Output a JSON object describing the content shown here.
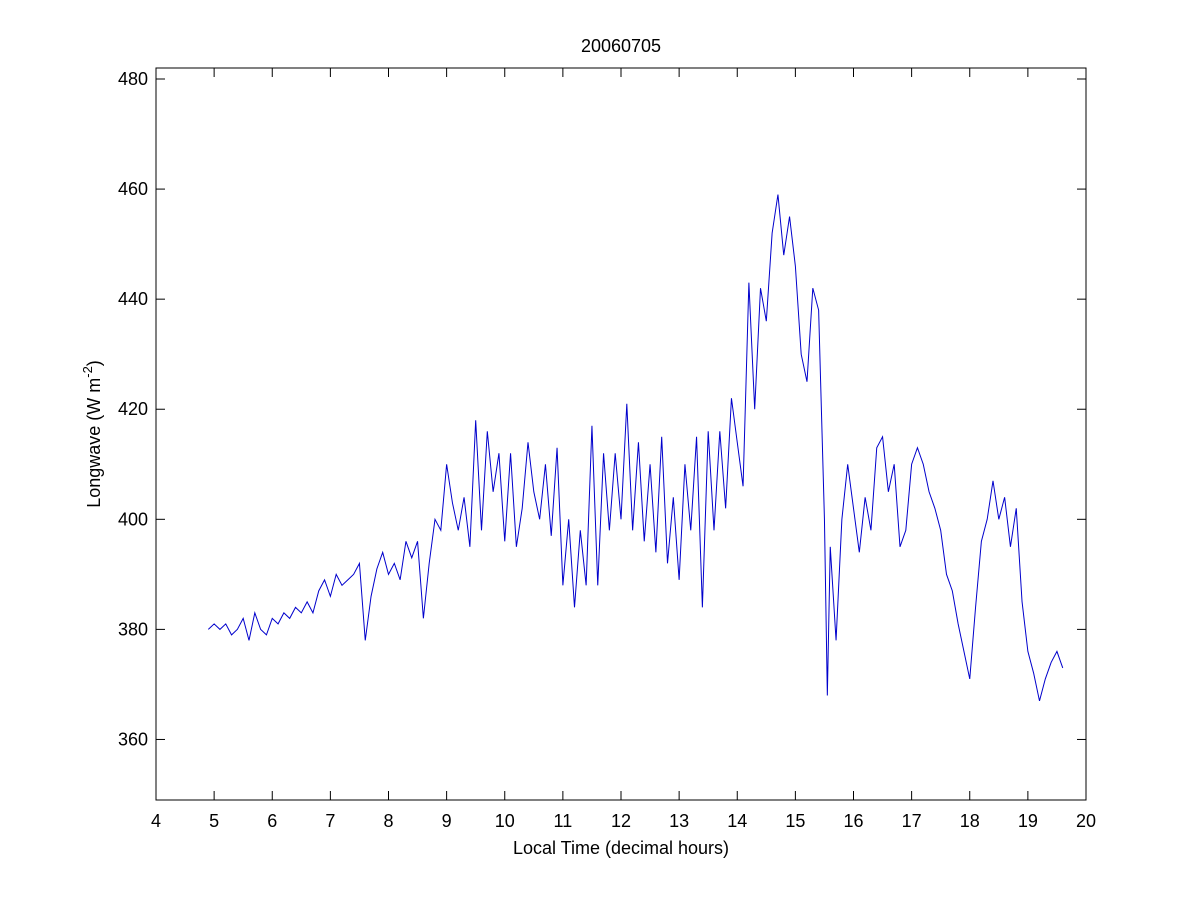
{
  "chart_data": {
    "type": "line",
    "title": "20060705",
    "x_label": "Local Time (decimal hours)",
    "y_label": {
      "text": "Longwave (W m",
      "superscript": "-2",
      "suffix": ")"
    },
    "xlim": [
      4,
      20
    ],
    "xticks": [
      4,
      5,
      6,
      7,
      8,
      9,
      10,
      11,
      12,
      13,
      14,
      15,
      16,
      17,
      18,
      19,
      20
    ],
    "ylim": [
      349,
      482
    ],
    "yticks": [
      360,
      380,
      400,
      420,
      440,
      460,
      480
    ],
    "series": [
      {
        "color": "#0000cc",
        "x": [
          4.9,
          5.0,
          5.1,
          5.2,
          5.3,
          5.4,
          5.5,
          5.6,
          5.7,
          5.8,
          5.9,
          6.0,
          6.1,
          6.2,
          6.3,
          6.4,
          6.5,
          6.6,
          6.7,
          6.8,
          6.9,
          7.0,
          7.1,
          7.2,
          7.3,
          7.4,
          7.5,
          7.6,
          7.7,
          7.8,
          7.9,
          8.0,
          8.1,
          8.2,
          8.3,
          8.4,
          8.5,
          8.6,
          8.7,
          8.8,
          8.9,
          9.0,
          9.1,
          9.2,
          9.3,
          9.4,
          9.5,
          9.6,
          9.7,
          9.8,
          9.9,
          10.0,
          10.1,
          10.2,
          10.3,
          10.4,
          10.5,
          10.6,
          10.7,
          10.8,
          10.9,
          11.0,
          11.1,
          11.2,
          11.3,
          11.4,
          11.5,
          11.6,
          11.7,
          11.8,
          11.9,
          12.0,
          12.1,
          12.2,
          12.3,
          12.4,
          12.5,
          12.6,
          12.7,
          12.8,
          12.9,
          13.0,
          13.1,
          13.2,
          13.3,
          13.4,
          13.5,
          13.6,
          13.7,
          13.8,
          13.9,
          14.0,
          14.1,
          14.2,
          14.3,
          14.4,
          14.5,
          14.6,
          14.7,
          14.8,
          14.9,
          15.0,
          15.1,
          15.2,
          15.3,
          15.4,
          15.5,
          15.55,
          15.6,
          15.7,
          15.8,
          15.9,
          16.0,
          16.1,
          16.2,
          16.3,
          16.4,
          16.5,
          16.6,
          16.7,
          16.8,
          16.9,
          17.0,
          17.1,
          17.2,
          17.3,
          17.4,
          17.5,
          17.6,
          17.7,
          17.8,
          17.9,
          18.0,
          18.1,
          18.2,
          18.3,
          18.4,
          18.5,
          18.6,
          18.7,
          18.8,
          18.9,
          19.0,
          19.1,
          19.2,
          19.3,
          19.4,
          19.5,
          19.6
        ],
        "values": [
          380,
          381,
          380,
          381,
          379,
          380,
          382,
          378,
          383,
          380,
          379,
          382,
          381,
          383,
          382,
          384,
          383,
          385,
          383,
          387,
          389,
          386,
          390,
          388,
          389,
          390,
          392,
          378,
          386,
          391,
          394,
          390,
          392,
          389,
          396,
          393,
          396,
          382,
          392,
          400,
          398,
          410,
          403,
          398,
          404,
          395,
          418,
          398,
          416,
          405,
          412,
          396,
          412,
          395,
          402,
          414,
          405,
          400,
          410,
          397,
          413,
          388,
          400,
          384,
          398,
          388,
          417,
          388,
          412,
          398,
          412,
          400,
          421,
          398,
          414,
          396,
          410,
          394,
          415,
          392,
          404,
          389,
          410,
          398,
          415,
          384,
          416,
          398,
          416,
          402,
          422,
          414,
          406,
          443,
          420,
          442,
          436,
          452,
          459,
          448,
          455,
          446,
          430,
          425,
          442,
          438,
          400,
          368,
          395,
          378,
          400,
          410,
          402,
          394,
          404,
          398,
          413,
          415,
          405,
          410,
          395,
          398,
          410,
          413,
          410,
          405,
          402,
          398,
          390,
          387,
          381,
          376,
          371,
          384,
          396,
          400,
          407,
          400,
          404,
          395,
          402,
          385,
          376,
          372,
          367,
          371,
          374,
          376,
          373
        ]
      }
    ]
  }
}
